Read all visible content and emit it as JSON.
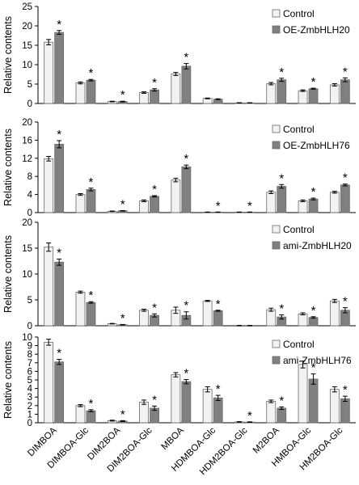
{
  "categories": [
    "DIMBOA",
    "DIMBOA-Glc",
    "DIM2BOA",
    "DIM2BOA-Glc",
    "MBOA",
    "HDMBOA-Glc",
    "HDM2BOA-Glc",
    "M2BOA",
    "HMBOA-Glc",
    "HM2BOA-Glc"
  ],
  "colors": {
    "control": "#f2f2f2",
    "treatment": "#808080",
    "edge": "#6a6a6a"
  },
  "chart_data": [
    {
      "type": "bar",
      "ylabel": "Relative contents",
      "ylim": [
        0,
        25
      ],
      "yticks": [
        0,
        5,
        10,
        15,
        20,
        25
      ],
      "legend_position": "top-right",
      "series": [
        {
          "name": "Control",
          "values": [
            15.8,
            5.3,
            0.5,
            2.8,
            7.6,
            1.3,
            0.15,
            5.1,
            3.3,
            4.8
          ],
          "errors": [
            0.7,
            0.25,
            0.08,
            0.2,
            0.4,
            0.1,
            0.05,
            0.3,
            0.2,
            0.3
          ]
        },
        {
          "name": "OE-ZmbHLH20",
          "values": [
            18.3,
            6.0,
            0.5,
            3.5,
            9.6,
            1.1,
            0.15,
            6.1,
            3.8,
            6.1
          ],
          "errors": [
            0.5,
            0.2,
            0.08,
            0.3,
            0.7,
            0.1,
            0.05,
            0.4,
            0.15,
            0.5
          ]
        }
      ],
      "significant": [
        0,
        1,
        2,
        3,
        4,
        7,
        8,
        9
      ]
    },
    {
      "type": "bar",
      "ylabel": "Relative contents",
      "ylim": [
        0,
        20
      ],
      "yticks": [
        0,
        4,
        8,
        12,
        16,
        20
      ],
      "legend_position": "top-right",
      "series": [
        {
          "name": "Control",
          "values": [
            11.9,
            4.0,
            0.3,
            2.6,
            7.2,
            0.1,
            0.1,
            4.5,
            2.6,
            4.5
          ],
          "errors": [
            0.5,
            0.2,
            0.05,
            0.2,
            0.4,
            0.03,
            0.03,
            0.3,
            0.2,
            0.2
          ]
        },
        {
          "name": "OE-ZmbHLH76",
          "values": [
            15.1,
            5.1,
            0.4,
            3.6,
            10.1,
            0.1,
            0.1,
            5.8,
            3.0,
            6.1
          ],
          "errors": [
            0.8,
            0.3,
            0.05,
            0.15,
            0.4,
            0.03,
            0.03,
            0.4,
            0.2,
            0.2
          ]
        }
      ],
      "significant": [
        0,
        1,
        2,
        3,
        4,
        5,
        6,
        7,
        8,
        9
      ]
    },
    {
      "type": "bar",
      "ylabel": "Relative contents",
      "ylim": [
        0,
        20
      ],
      "yticks": [
        0,
        5,
        10,
        15,
        20
      ],
      "legend_position": "top-right",
      "series": [
        {
          "name": "Control",
          "values": [
            15.2,
            6.5,
            0.4,
            3.0,
            3.0,
            4.8,
            0.05,
            3.1,
            2.3,
            4.8
          ],
          "errors": [
            0.8,
            0.2,
            0.05,
            0.2,
            0.6,
            0.1,
            0.02,
            0.3,
            0.2,
            0.3
          ]
        },
        {
          "name": "ami-ZmbHLH20",
          "values": [
            12.3,
            4.5,
            0.2,
            2.0,
            2.0,
            2.9,
            0.05,
            1.7,
            1.6,
            3.0
          ],
          "errors": [
            0.6,
            0.15,
            0.05,
            0.3,
            0.7,
            0.1,
            0.02,
            0.4,
            0.15,
            0.5
          ]
        }
      ],
      "significant": [
        0,
        1,
        2,
        3,
        4,
        5,
        7,
        8,
        9
      ]
    },
    {
      "type": "bar",
      "ylabel": "Relative contents",
      "ylim": [
        0,
        10
      ],
      "yticks": [
        0,
        1,
        2,
        3,
        4,
        5,
        6,
        7,
        8,
        9,
        10
      ],
      "legend_position": "top-right",
      "series": [
        {
          "name": "Control",
          "values": [
            9.4,
            2.0,
            0.25,
            2.4,
            5.6,
            3.9,
            0.1,
            2.5,
            6.8,
            3.9
          ],
          "errors": [
            0.35,
            0.12,
            0.05,
            0.25,
            0.25,
            0.3,
            0.03,
            0.15,
            0.4,
            0.3
          ]
        },
        {
          "name": "ami-ZmbHLH76",
          "values": [
            7.1,
            1.4,
            0.2,
            1.7,
            4.8,
            2.9,
            0.08,
            1.7,
            5.1,
            2.8
          ],
          "errors": [
            0.3,
            0.12,
            0.05,
            0.25,
            0.25,
            0.3,
            0.03,
            0.15,
            0.6,
            0.3
          ]
        }
      ],
      "significant": [
        0,
        1,
        2,
        3,
        4,
        5,
        6,
        7,
        8,
        9
      ]
    }
  ]
}
